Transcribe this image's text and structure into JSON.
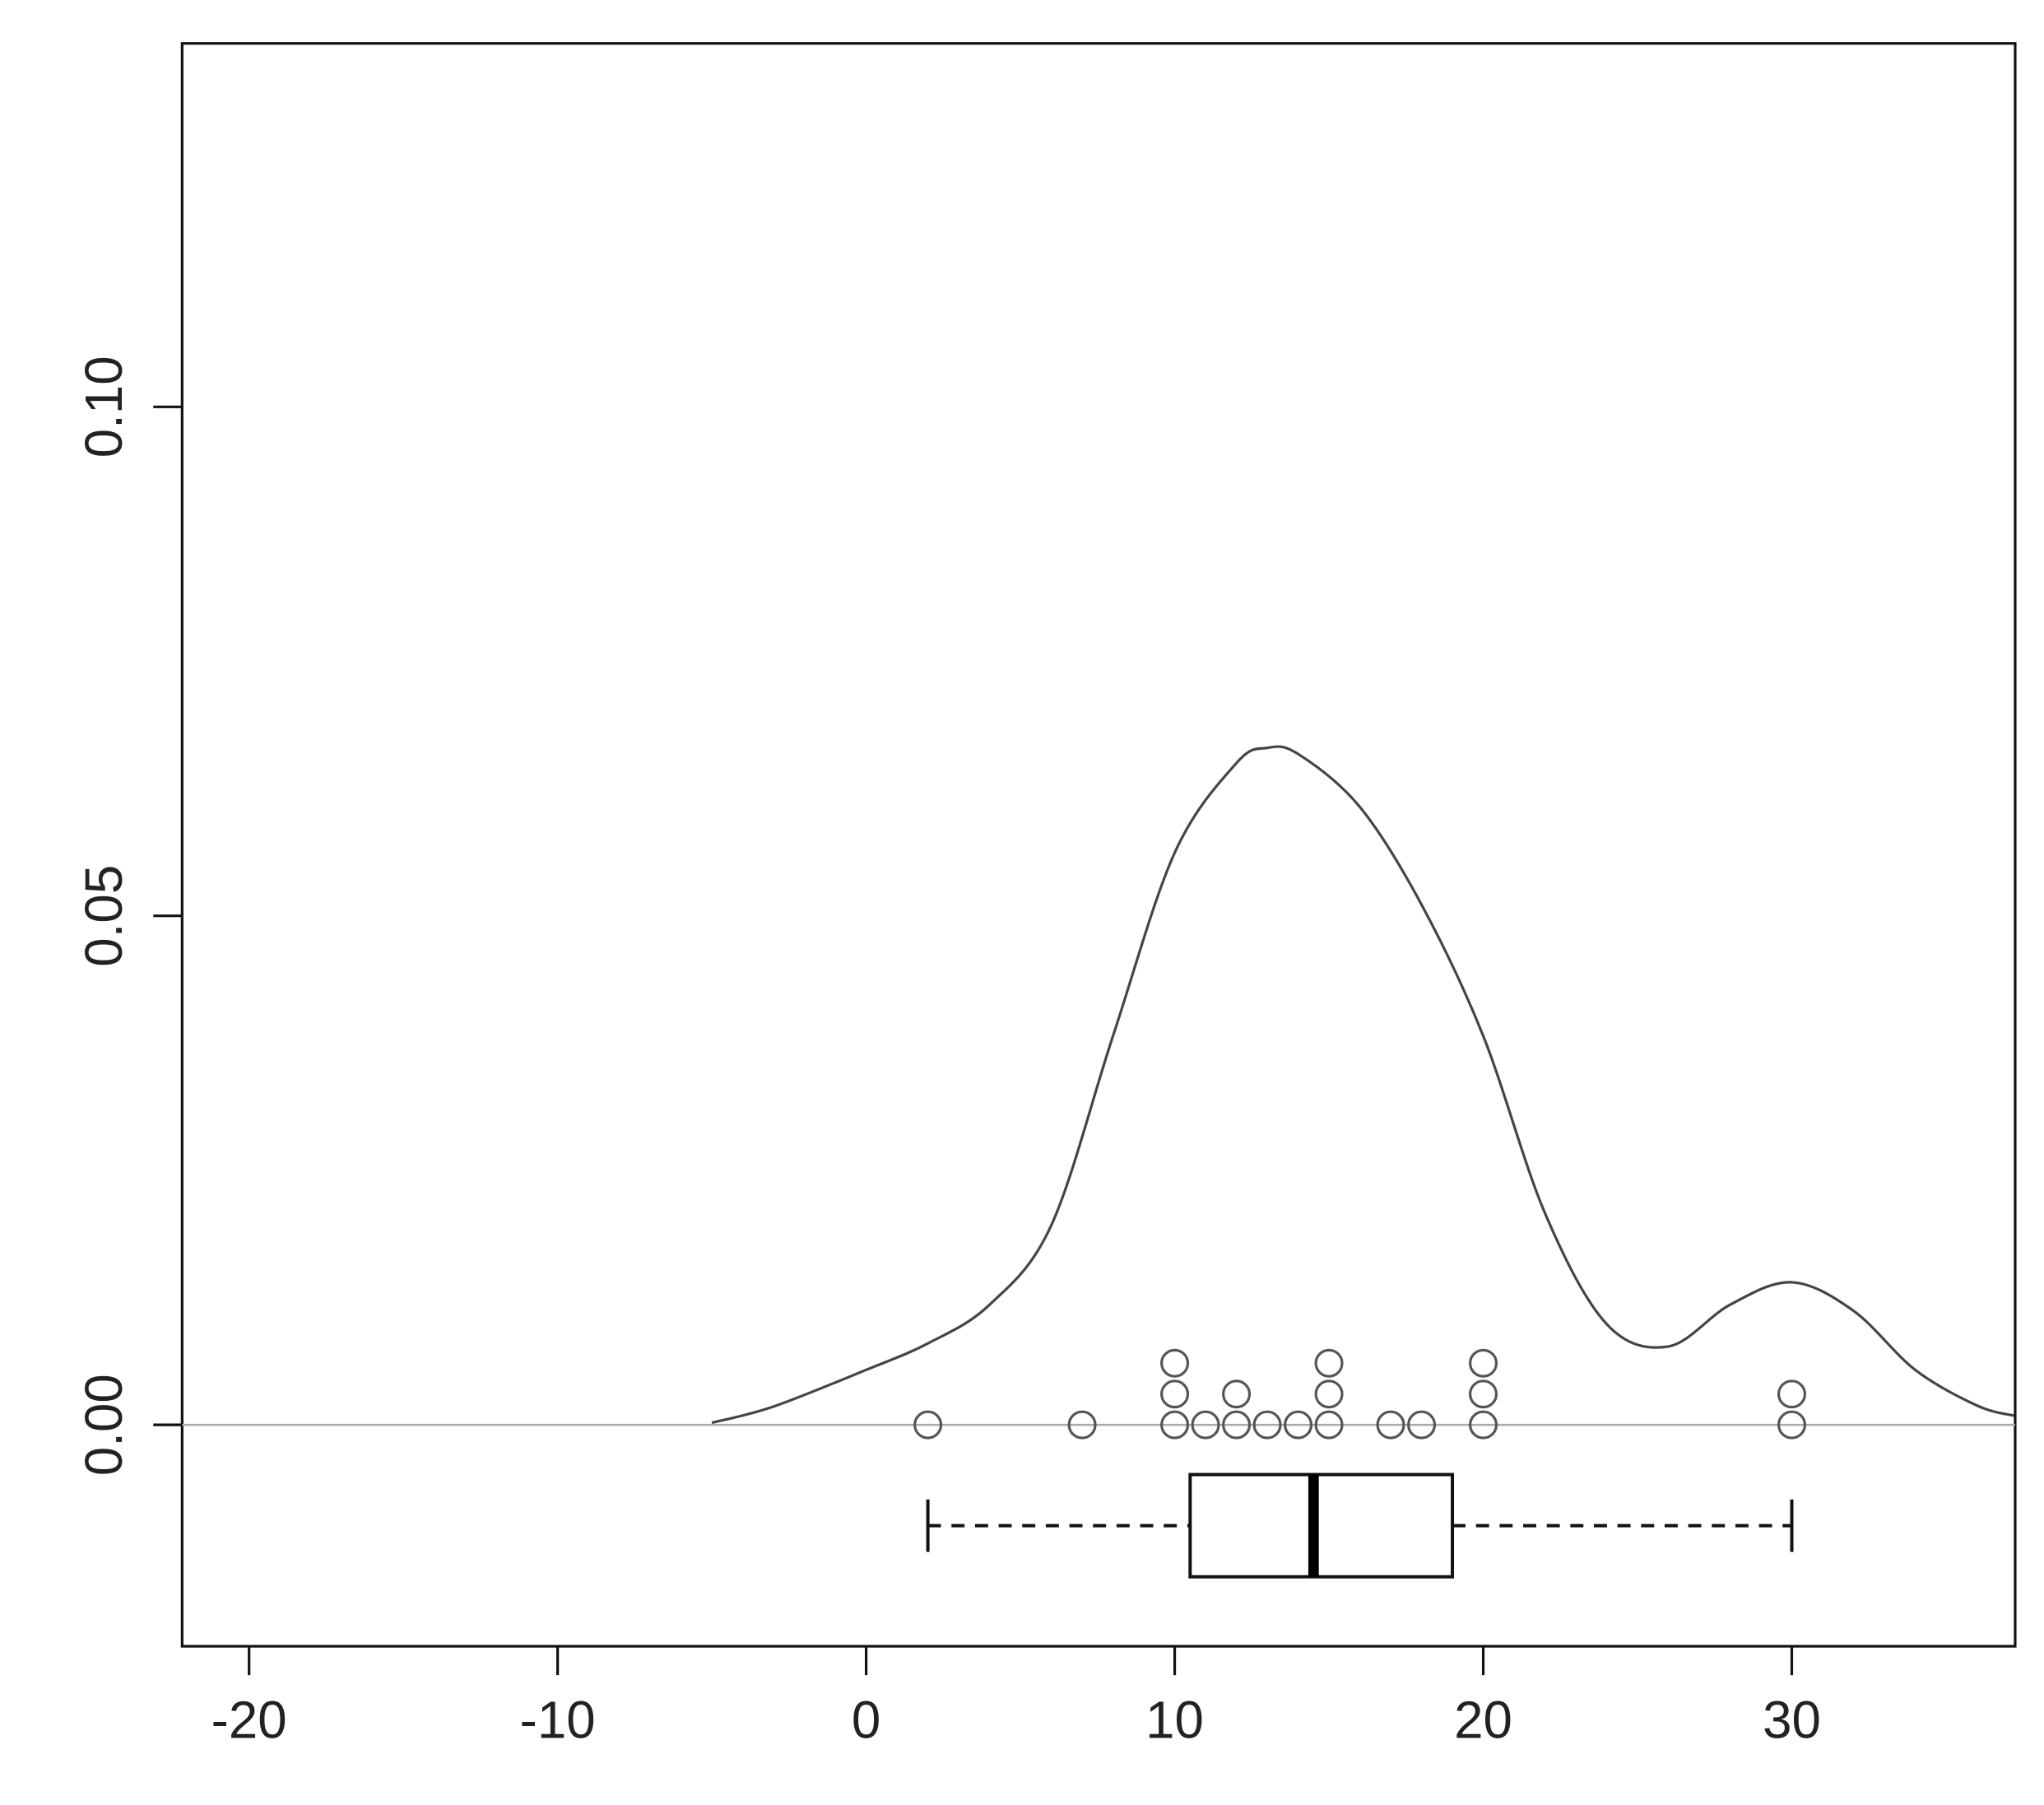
{
  "chart_data": {
    "type": "density",
    "x": [
      -5,
      -3,
      0,
      2,
      4,
      6,
      8,
      10,
      12,
      13,
      14,
      16,
      18,
      20,
      22,
      24,
      26,
      28,
      30,
      32,
      34,
      36,
      37.2
    ],
    "values": [
      0.0002,
      0.0018,
      0.0054,
      0.008,
      0.0118,
      0.0196,
      0.0382,
      0.0562,
      0.065,
      0.0665,
      0.0659,
      0.0607,
      0.0511,
      0.0382,
      0.0208,
      0.0099,
      0.0077,
      0.0118,
      0.014,
      0.0112,
      0.0054,
      0.0019,
      0.0009
    ],
    "points": [
      2,
      7,
      10,
      10,
      10,
      11,
      12,
      12,
      13,
      14,
      15,
      15,
      15,
      17,
      18,
      20,
      20,
      20,
      30,
      30
    ],
    "boxplot": {
      "whisker_low": 2,
      "q1": 10.5,
      "median": 14.5,
      "q3": 19,
      "whisker_high": 30
    },
    "color": "#444444",
    "xlim": [
      -22.17,
      37.24
    ],
    "ylim": [
      -0.02175,
      0.1357
    ],
    "xticks": [
      -20,
      -10,
      0,
      10,
      20,
      30
    ],
    "yticks": [
      {
        "value": 0,
        "label": "0.00"
      },
      {
        "value": 0.05,
        "label": "0.05"
      },
      {
        "value": 0.1,
        "label": "0.10"
      }
    ]
  }
}
